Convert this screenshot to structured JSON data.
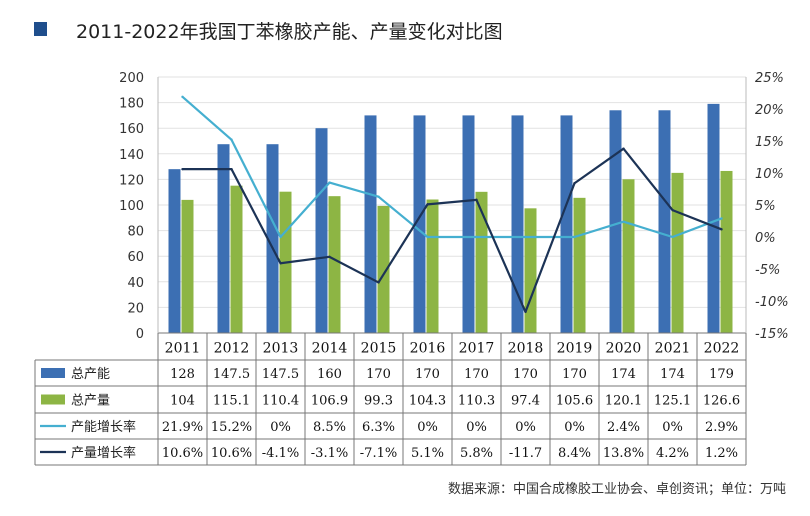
{
  "header": {
    "title": "2011-2022年我国丁苯橡胶产能、产量变化对比图",
    "source": "数据来源：中国合成橡胶工业协会、卓创资讯；单位：万吨"
  },
  "colors": {
    "capacity": "#3c6fb3",
    "output": "#8db544",
    "capacity_growth": "#45afd0",
    "output_growth": "#1c3356",
    "grid": "#e2e2e2",
    "axis": "#777777"
  },
  "chart_data": {
    "type": "bar",
    "title": "2011-2022年我国丁苯橡胶产能、产量变化对比图",
    "categories": [
      "2011",
      "2012",
      "2013",
      "2014",
      "2015",
      "2016",
      "2017",
      "2018",
      "2019",
      "2020",
      "2021",
      "2022"
    ],
    "ylim": [
      0,
      200
    ],
    "yticks": [
      "0",
      "20",
      "40",
      "60",
      "80",
      "100",
      "120",
      "140",
      "160",
      "180",
      "200"
    ],
    "y2lim": [
      -15,
      25
    ],
    "y2ticks": [
      "-15%",
      "-10%",
      "-5%",
      "0%",
      "5%",
      "10%",
      "15%",
      "20%",
      "25%"
    ],
    "y2tick_values": [
      -15,
      -10,
      -5,
      0,
      5,
      10,
      15,
      20,
      25
    ],
    "series": [
      {
        "name": "总产能",
        "kind": "bar",
        "axis": "left",
        "values": [
          128,
          147.5,
          147.5,
          160,
          170,
          170,
          170,
          170,
          170,
          174,
          174,
          179
        ],
        "labels": [
          "128",
          "147.5",
          "147.5",
          "160",
          "170",
          "170",
          "170",
          "170",
          "170",
          "174",
          "174",
          "179"
        ]
      },
      {
        "name": "总产量",
        "kind": "bar",
        "axis": "left",
        "values": [
          104,
          115.1,
          110.4,
          106.9,
          99.3,
          104.3,
          110.3,
          97.4,
          105.6,
          120.1,
          125.1,
          126.6
        ],
        "labels": [
          "104",
          "115.1",
          "110.4",
          "106.9",
          "99.3",
          "104.3",
          "110.3",
          "97.4",
          "105.6",
          "120.1",
          "125.1",
          "126.6"
        ]
      },
      {
        "name": "产能增长率",
        "kind": "line",
        "axis": "right",
        "values": [
          21.9,
          15.2,
          0,
          8.5,
          6.3,
          0,
          0,
          0,
          0,
          2.4,
          0,
          2.9
        ],
        "labels": [
          "21.9%",
          "15.2%",
          "0%",
          "8.5%",
          "6.3%",
          "0%",
          "0%",
          "0%",
          "0%",
          "2.4%",
          "0%",
          "2.9%"
        ]
      },
      {
        "name": "产量增长率",
        "kind": "line",
        "axis": "right",
        "values": [
          10.6,
          10.6,
          -4.1,
          -3.1,
          -7.1,
          5.1,
          5.8,
          -11.7,
          8.4,
          13.8,
          4.2,
          1.2
        ],
        "labels": [
          "10.6%",
          "10.6%",
          "-4.1%",
          "-3.1%",
          "-7.1%",
          "5.1%",
          "5.8%",
          "-11.7",
          "8.4%",
          "13.8%",
          "4.2%",
          "1.2%"
        ]
      }
    ]
  }
}
